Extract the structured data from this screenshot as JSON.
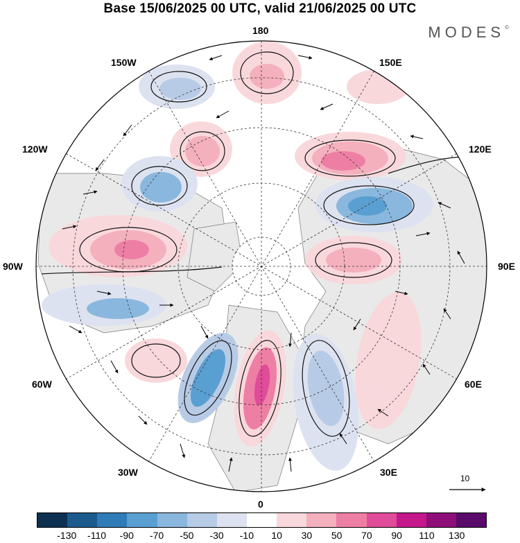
{
  "title": "Base 15/06/2025 00 UTC, valid 21/06/2025 00 UTC",
  "brand": "MODES",
  "brand_mark": "©",
  "longitude_labels": {
    "lon_180": "180",
    "lon_150e": "150E",
    "lon_120e": "120E",
    "lon_90e": "90E",
    "lon_60e": "60E",
    "lon_30e": "30E",
    "lon_0": "0",
    "lon_30w": "30W",
    "lon_60w": "60W",
    "lon_90w": "90W",
    "lon_120w": "120W",
    "lon_150w": "150W"
  },
  "reference_vector_label": "10",
  "colorbar": {
    "colors": [
      "#0d3050",
      "#1a5a8c",
      "#2f7cb8",
      "#5a9fd1",
      "#8ab7de",
      "#b8cbe6",
      "#dde2f0",
      "#ffffff",
      "#f9d8dc",
      "#f4b0bd",
      "#ee7fa4",
      "#e04c99",
      "#c4178a",
      "#8e0f7a",
      "#5a0a6a"
    ],
    "tick_labels": [
      "-130",
      "-110",
      "-90",
      "-70",
      "-50",
      "-30",
      "-10",
      "10",
      "30",
      "50",
      "70",
      "90",
      "110",
      "130"
    ]
  }
}
